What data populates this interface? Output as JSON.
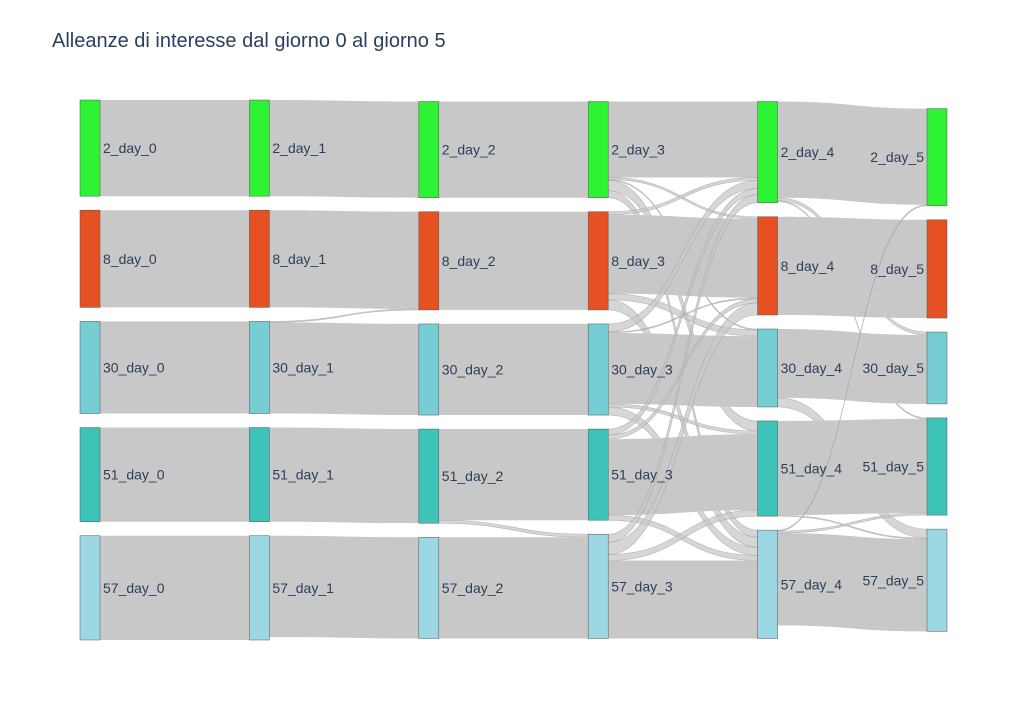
{
  "chart_data": {
    "type": "sankey",
    "title": "Alleanze di interesse dal giorno 0 al giorno 5",
    "groups": [
      "2",
      "8",
      "30",
      "51",
      "57"
    ],
    "days": [
      0,
      1,
      2,
      3,
      4,
      5
    ],
    "group_colors": {
      "2": "#2ef234",
      "8": "#e65124",
      "30": "#77cdd4",
      "51": "#3dc3b8",
      "57": "#9bd8e3"
    },
    "link_color": "#c8c8c8",
    "nodes": [
      {
        "id": "2_day_0",
        "label": "2_day_0",
        "group": "2",
        "day": 0
      },
      {
        "id": "8_day_0",
        "label": "8_day_0",
        "group": "8",
        "day": 0
      },
      {
        "id": "30_day_0",
        "label": "30_day_0",
        "group": "30",
        "day": 0
      },
      {
        "id": "51_day_0",
        "label": "51_day_0",
        "group": "51",
        "day": 0
      },
      {
        "id": "57_day_0",
        "label": "57_day_0",
        "group": "57",
        "day": 0
      },
      {
        "id": "2_day_1",
        "label": "2_day_1",
        "group": "2",
        "day": 1
      },
      {
        "id": "8_day_1",
        "label": "8_day_1",
        "group": "8",
        "day": 1
      },
      {
        "id": "30_day_1",
        "label": "30_day_1",
        "group": "30",
        "day": 1
      },
      {
        "id": "51_day_1",
        "label": "51_day_1",
        "group": "51",
        "day": 1
      },
      {
        "id": "57_day_1",
        "label": "57_day_1",
        "group": "57",
        "day": 1
      },
      {
        "id": "2_day_2",
        "label": "2_day_2",
        "group": "2",
        "day": 2
      },
      {
        "id": "8_day_2",
        "label": "8_day_2",
        "group": "8",
        "day": 2
      },
      {
        "id": "30_day_2",
        "label": "30_day_2",
        "group": "30",
        "day": 2
      },
      {
        "id": "51_day_2",
        "label": "51_day_2",
        "group": "51",
        "day": 2
      },
      {
        "id": "57_day_2",
        "label": "57_day_2",
        "group": "57",
        "day": 2
      },
      {
        "id": "2_day_3",
        "label": "2_day_3",
        "group": "2",
        "day": 3
      },
      {
        "id": "8_day_3",
        "label": "8_day_3",
        "group": "8",
        "day": 3
      },
      {
        "id": "30_day_3",
        "label": "30_day_3",
        "group": "30",
        "day": 3
      },
      {
        "id": "51_day_3",
        "label": "51_day_3",
        "group": "51",
        "day": 3
      },
      {
        "id": "57_day_3",
        "label": "57_day_3",
        "group": "57",
        "day": 3
      },
      {
        "id": "2_day_4",
        "label": "2_day_4",
        "group": "2",
        "day": 4
      },
      {
        "id": "8_day_4",
        "label": "8_day_4",
        "group": "8",
        "day": 4
      },
      {
        "id": "30_day_4",
        "label": "30_day_4",
        "group": "30",
        "day": 4
      },
      {
        "id": "51_day_4",
        "label": "51_day_4",
        "group": "51",
        "day": 4
      },
      {
        "id": "57_day_4",
        "label": "57_day_4",
        "group": "57",
        "day": 4
      },
      {
        "id": "2_day_5",
        "label": "2_day_5",
        "group": "2",
        "day": 5
      },
      {
        "id": "8_day_5",
        "label": "8_day_5",
        "group": "8",
        "day": 5
      },
      {
        "id": "30_day_5",
        "label": "30_day_5",
        "group": "30",
        "day": 5
      },
      {
        "id": "51_day_5",
        "label": "51_day_5",
        "group": "51",
        "day": 5
      },
      {
        "id": "57_day_5",
        "label": "57_day_5",
        "group": "57",
        "day": 5
      }
    ],
    "links": [
      {
        "source": "2_day_0",
        "target": "2_day_1",
        "value": 95
      },
      {
        "source": "8_day_0",
        "target": "8_day_1",
        "value": 96
      },
      {
        "source": "30_day_0",
        "target": "30_day_1",
        "value": 91
      },
      {
        "source": "51_day_0",
        "target": "51_day_1",
        "value": 93
      },
      {
        "source": "57_day_0",
        "target": "57_day_1",
        "value": 103
      },
      {
        "source": "2_day_1",
        "target": "2_day_2",
        "value": 95
      },
      {
        "source": "8_day_1",
        "target": "8_day_2",
        "value": 96
      },
      {
        "source": "30_day_1",
        "target": "30_day_2",
        "value": 90
      },
      {
        "source": "30_day_1",
        "target": "8_day_2",
        "value": 1
      },
      {
        "source": "51_day_1",
        "target": "51_day_2",
        "value": 93
      },
      {
        "source": "57_day_1",
        "target": "57_day_2",
        "value": 100
      },
      {
        "source": "2_day_2",
        "target": "2_day_3",
        "value": 95
      },
      {
        "source": "8_day_2",
        "target": "8_day_3",
        "value": 97
      },
      {
        "source": "30_day_2",
        "target": "30_day_3",
        "value": 90
      },
      {
        "source": "51_day_2",
        "target": "51_day_3",
        "value": 90
      },
      {
        "source": "51_day_2",
        "target": "57_day_3",
        "value": 3
      },
      {
        "source": "57_day_2",
        "target": "57_day_3",
        "value": 100
      },
      {
        "source": "2_day_3",
        "target": "2_day_4",
        "value": 75
      },
      {
        "source": "2_day_3",
        "target": "8_day_4",
        "value": 2
      },
      {
        "source": "2_day_3",
        "target": "30_day_4",
        "value": 1
      },
      {
        "source": "2_day_3",
        "target": "51_day_4",
        "value": 10
      },
      {
        "source": "2_day_3",
        "target": "57_day_4",
        "value": 7
      },
      {
        "source": "8_day_3",
        "target": "2_day_4",
        "value": 3
      },
      {
        "source": "8_day_3",
        "target": "8_day_4",
        "value": 78
      },
      {
        "source": "8_day_3",
        "target": "30_day_4",
        "value": 6
      },
      {
        "source": "8_day_3",
        "target": "57_day_4",
        "value": 10
      },
      {
        "source": "30_day_3",
        "target": "2_day_4",
        "value": 8
      },
      {
        "source": "30_day_3",
        "target": "8_day_4",
        "value": 1
      },
      {
        "source": "30_day_3",
        "target": "30_day_4",
        "value": 70
      },
      {
        "source": "30_day_3",
        "target": "51_day_4",
        "value": 3
      },
      {
        "source": "30_day_3",
        "target": "57_day_4",
        "value": 8
      },
      {
        "source": "51_day_3",
        "target": "2_day_4",
        "value": 6
      },
      {
        "source": "51_day_3",
        "target": "8_day_4",
        "value": 4
      },
      {
        "source": "51_day_3",
        "target": "51_day_4",
        "value": 75
      },
      {
        "source": "51_day_3",
        "target": "57_day_4",
        "value": 5
      },
      {
        "source": "57_day_3",
        "target": "2_day_4",
        "value": 8
      },
      {
        "source": "57_day_3",
        "target": "8_day_4",
        "value": 12
      },
      {
        "source": "57_day_3",
        "target": "51_day_4",
        "value": 6
      },
      {
        "source": "57_day_3",
        "target": "57_day_4",
        "value": 77
      },
      {
        "source": "2_day_4",
        "target": "2_day_5",
        "value": 95
      },
      {
        "source": "2_day_4",
        "target": "30_day_5",
        "value": 3
      },
      {
        "source": "2_day_4",
        "target": "51_day_5",
        "value": 1
      },
      {
        "source": "8_day_4",
        "target": "8_day_5",
        "value": 97
      },
      {
        "source": "30_day_4",
        "target": "30_day_5",
        "value": 68
      },
      {
        "source": "30_day_4",
        "target": "57_day_5",
        "value": 9
      },
      {
        "source": "51_day_4",
        "target": "51_day_5",
        "value": 93
      },
      {
        "source": "51_day_4",
        "target": "57_day_5",
        "value": 1
      },
      {
        "source": "57_day_4",
        "target": "57_day_5",
        "value": 91
      },
      {
        "source": "57_day_4",
        "target": "2_day_5",
        "value": 1
      },
      {
        "source": "57_day_4",
        "target": "51_day_5",
        "value": 2
      }
    ]
  }
}
